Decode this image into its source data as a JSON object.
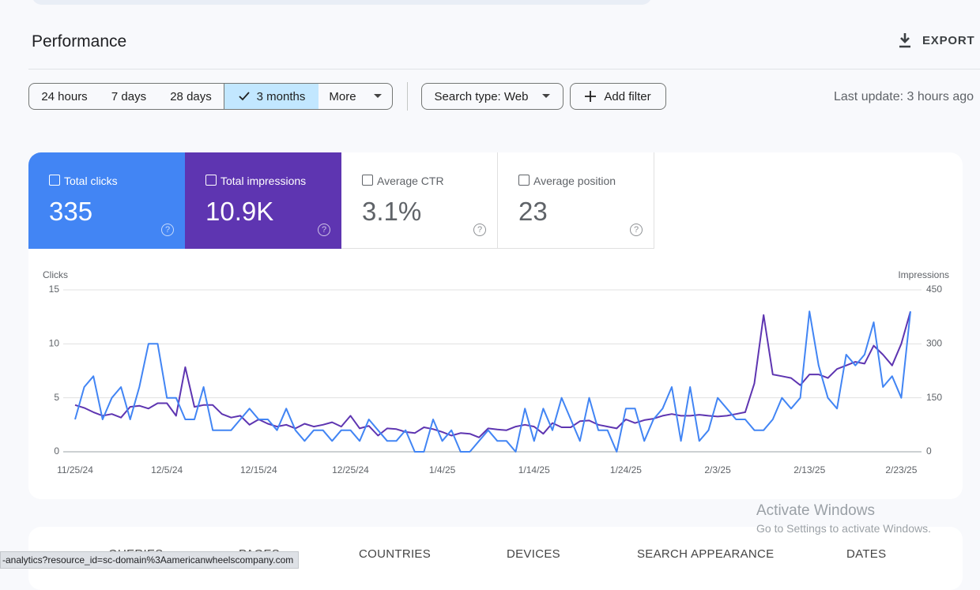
{
  "header": {
    "title": "Performance",
    "export": "EXPORT"
  },
  "filters": {
    "ranges": [
      "24 hours",
      "7 days",
      "28 days",
      "3 months",
      "More"
    ],
    "search_type": "Search type: Web",
    "add_filter": "Add filter",
    "last_update": "Last update: 3 hours ago"
  },
  "metrics": [
    {
      "label": "Total clicks",
      "value": "335"
    },
    {
      "label": "Total impressions",
      "value": "10.9K"
    },
    {
      "label": "Average CTR",
      "value": "3.1%"
    },
    {
      "label": "Average position",
      "value": "23"
    }
  ],
  "chart_data": {
    "type": "line",
    "ylabel": "Clicks",
    "y2label": "Impressions",
    "x": [
      "11/25/24",
      "11/26/24",
      "11/27/24",
      "11/28/24",
      "11/29/24",
      "11/30/24",
      "12/1/24",
      "12/2/24",
      "12/3/24",
      "12/4/24",
      "12/5/24",
      "12/6/24",
      "12/7/24",
      "12/8/24",
      "12/9/24",
      "12/10/24",
      "12/11/24",
      "12/12/24",
      "12/13/24",
      "12/14/24",
      "12/15/24",
      "12/16/24",
      "12/17/24",
      "12/18/24",
      "12/19/24",
      "12/20/24",
      "12/21/24",
      "12/22/24",
      "12/23/24",
      "12/24/24",
      "12/25/24",
      "12/26/24",
      "12/27/24",
      "12/28/24",
      "12/29/24",
      "12/30/24",
      "12/31/24",
      "1/1/25",
      "1/2/25",
      "1/3/25",
      "1/4/25",
      "1/5/25",
      "1/6/25",
      "1/7/25",
      "1/8/25",
      "1/9/25",
      "1/10/25",
      "1/11/25",
      "1/12/25",
      "1/13/25",
      "1/14/25",
      "1/15/25",
      "1/16/25",
      "1/17/25",
      "1/18/25",
      "1/19/25",
      "1/20/25",
      "1/21/25",
      "1/22/25",
      "1/23/25",
      "1/24/25",
      "1/25/25",
      "1/26/25",
      "1/27/25",
      "1/28/25",
      "1/29/25",
      "1/30/25",
      "1/31/25",
      "2/1/25",
      "2/2/25",
      "2/3/25",
      "2/4/25",
      "2/5/25",
      "2/6/25",
      "2/7/25",
      "2/8/25",
      "2/9/25",
      "2/10/25",
      "2/11/25",
      "2/12/25",
      "2/13/25",
      "2/14/25",
      "2/15/25",
      "2/16/25",
      "2/17/25",
      "2/18/25",
      "2/19/25",
      "2/20/25",
      "2/21/25",
      "2/22/25",
      "2/23/25",
      "2/24/25"
    ],
    "xticks": [
      "11/25/24",
      "12/5/24",
      "12/15/24",
      "12/25/24",
      "1/4/25",
      "1/14/25",
      "1/24/25",
      "2/3/25",
      "2/13/25",
      "2/23/25"
    ],
    "series": [
      {
        "color": "#4285f4",
        "values": [
          3,
          6,
          7,
          3,
          5,
          6,
          3,
          6,
          10,
          10,
          5,
          5,
          3,
          3,
          6,
          2,
          2,
          2,
          3,
          4,
          3,
          3,
          2,
          4,
          2,
          1,
          2,
          2,
          1,
          2,
          2,
          1,
          3,
          2,
          1,
          1,
          2,
          0,
          0,
          3,
          1,
          2,
          0,
          0,
          1,
          2,
          1,
          1,
          0,
          4,
          1,
          4,
          2,
          5,
          3,
          1,
          5,
          2,
          2,
          0,
          4,
          4,
          1,
          3,
          4,
          6,
          1,
          6,
          1,
          2,
          5,
          4,
          3,
          3,
          2,
          2,
          3,
          5,
          4,
          5,
          13,
          8,
          5,
          4,
          9,
          8,
          9,
          12,
          6,
          7,
          5,
          13
        ]
      },
      {
        "color": "#5e35b1",
        "axis": "y2",
        "values": [
          130,
          122,
          110,
          100,
          105,
          95,
          125,
          128,
          120,
          135,
          135,
          100,
          235,
          125,
          130,
          130,
          105,
          95,
          100,
          75,
          90,
          78,
          70,
          75,
          65,
          78,
          70,
          75,
          82,
          70,
          100,
          65,
          72,
          45,
          65,
          63,
          55,
          52,
          68,
          63,
          55,
          45,
          52,
          50,
          40,
          65,
          62,
          60,
          70,
          75,
          70,
          50,
          80,
          68,
          68,
          85,
          87,
          75,
          70,
          65,
          90,
          80,
          88,
          92,
          100,
          105,
          100,
          100,
          103,
          100,
          98,
          100,
          105,
          110,
          190,
          380,
          215,
          210,
          205,
          185,
          215,
          215,
          205,
          230,
          240,
          250,
          245,
          295,
          270,
          240,
          300,
          390
        ]
      }
    ],
    "ylim": [
      0,
      15
    ],
    "yticks": [
      0,
      5,
      10,
      15
    ],
    "y2lim": [
      0,
      450
    ],
    "y2ticks": [
      0,
      150,
      300,
      450
    ],
    "grid": true
  },
  "tabs": [
    "QUERIES",
    "PAGES",
    "COUNTRIES",
    "DEVICES",
    "SEARCH APPEARANCE",
    "DATES"
  ],
  "status_url": "-analytics?resource_id=sc-domain%3Aamericanwheelscompany.com",
  "watermark": {
    "title": "Activate Windows",
    "subtitle": "Go to Settings to activate Windows."
  }
}
